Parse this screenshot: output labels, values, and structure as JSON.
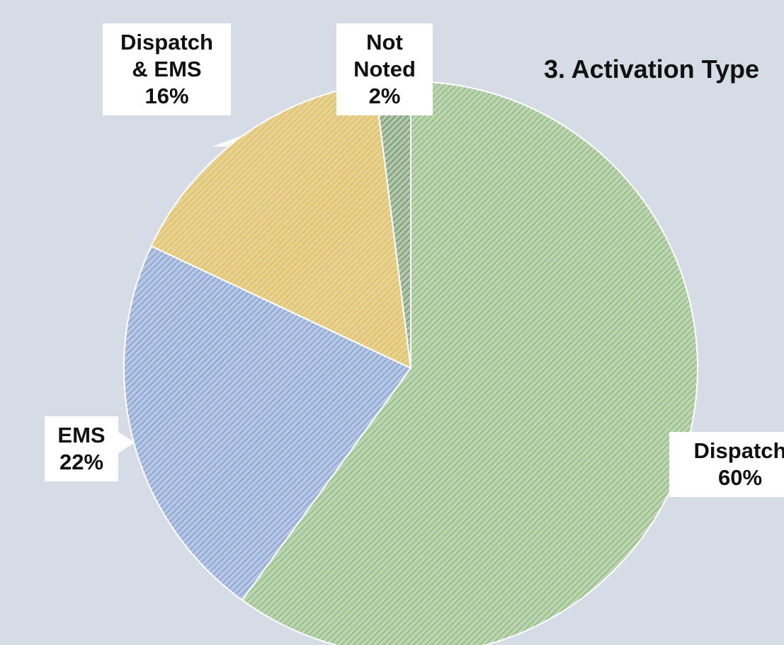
{
  "chart_data": {
    "type": "pie",
    "title": "3. Activation Type",
    "categories": [
      "Dispatch",
      "EMS",
      "Dispatch & EMS",
      "Not Noted"
    ],
    "values": [
      60,
      22,
      16,
      2
    ],
    "value_labels": [
      "60%",
      "22%",
      "16%",
      "2%"
    ],
    "colors": [
      "#8cc168",
      "#7f9fd8",
      "#f2bf2a",
      "#6f9a55"
    ]
  }
}
